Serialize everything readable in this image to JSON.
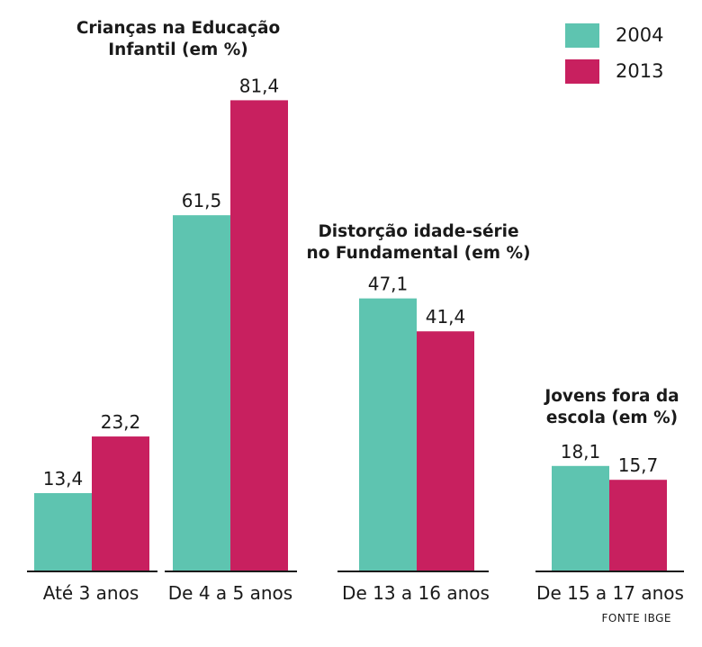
{
  "chart_data": [
    {
      "type": "bar",
      "title": "Crianças na Educação Infantil (em %)",
      "title_lines": [
        "Crianças na Educação",
        "Infantil (em %)"
      ],
      "categories": [
        "Até 3 anos",
        "De 4 a 5 anos"
      ],
      "series": [
        {
          "name": "2004",
          "values": [
            13.4,
            61.5
          ],
          "labels": [
            "13,4",
            "61,5"
          ]
        },
        {
          "name": "2013",
          "values": [
            23.2,
            81.4
          ],
          "labels": [
            "23,2",
            "81,4"
          ]
        }
      ]
    },
    {
      "type": "bar",
      "title": "Distorção idade-série no Fundamental (em %)",
      "title_lines": [
        "Distorção idade-série",
        "no Fundamental (em %)"
      ],
      "categories": [
        "De 13 a 16 anos"
      ],
      "series": [
        {
          "name": "2004",
          "values": [
            47.1
          ],
          "labels": [
            "47,1"
          ]
        },
        {
          "name": "2013",
          "values": [
            41.4
          ],
          "labels": [
            "41,4"
          ]
        }
      ]
    },
    {
      "type": "bar",
      "title": "Jovens fora da escola (em %)",
      "title_lines": [
        "Jovens fora da",
        "escola (em %)"
      ],
      "categories": [
        "De 15 a 17 anos"
      ],
      "series": [
        {
          "name": "2004",
          "values": [
            18.1
          ],
          "labels": [
            "18,1"
          ]
        },
        {
          "name": "2013",
          "values": [
            15.7
          ],
          "labels": [
            "15,7"
          ]
        }
      ]
    }
  ],
  "legend": {
    "placement": "top-right",
    "items": [
      {
        "label": "2004",
        "color": "#5ec4b0"
      },
      {
        "label": "2013",
        "color": "#c8205f"
      }
    ]
  },
  "source": "FONTE IBGE"
}
